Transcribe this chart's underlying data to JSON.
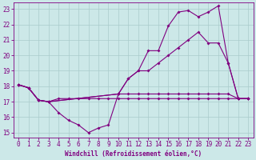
{
  "xlabel": "Windchill (Refroidissement éolien,°C)",
  "bg_color": "#cce8e8",
  "grid_color": "#aacccc",
  "line_color": "#800080",
  "xlim": [
    -0.5,
    23.5
  ],
  "ylim": [
    14.7,
    23.4
  ],
  "yticks": [
    15,
    16,
    17,
    18,
    19,
    20,
    21,
    22,
    23
  ],
  "xticks": [
    0,
    1,
    2,
    3,
    4,
    5,
    6,
    7,
    8,
    9,
    10,
    11,
    12,
    13,
    14,
    15,
    16,
    17,
    18,
    19,
    20,
    21,
    22,
    23
  ],
  "series": [
    {
      "x": [
        0,
        1,
        2,
        3,
        4,
        5,
        6,
        7,
        8,
        9,
        10,
        11,
        12,
        13,
        14,
        15,
        16,
        17,
        18,
        19,
        20,
        21,
        22,
        23
      ],
      "y": [
        18.1,
        17.9,
        17.1,
        17.0,
        16.3,
        15.8,
        15.5,
        15.0,
        15.3,
        15.5,
        17.5,
        17.5,
        17.5,
        17.5,
        17.5,
        17.5,
        17.5,
        17.5,
        17.5,
        17.5,
        17.5,
        17.5,
        17.2,
        17.2
      ]
    },
    {
      "x": [
        0,
        1,
        2,
        3,
        4,
        5,
        6,
        7,
        8,
        9,
        10,
        11,
        12,
        13,
        14,
        15,
        16,
        17,
        18,
        19,
        20,
        21,
        22,
        23
      ],
      "y": [
        18.1,
        17.9,
        17.1,
        17.0,
        17.2,
        17.2,
        17.2,
        17.2,
        17.2,
        17.2,
        17.2,
        17.2,
        17.2,
        17.2,
        17.2,
        17.2,
        17.2,
        17.2,
        17.2,
        17.2,
        17.2,
        17.2,
        17.2,
        17.2
      ]
    },
    {
      "x": [
        0,
        1,
        2,
        3,
        10,
        11,
        12,
        13,
        14,
        15,
        16,
        17,
        18,
        19,
        20,
        21,
        22,
        23
      ],
      "y": [
        18.1,
        17.9,
        17.1,
        17.0,
        17.5,
        18.5,
        19.0,
        20.3,
        20.3,
        21.9,
        22.8,
        22.9,
        22.5,
        22.8,
        23.2,
        19.5,
        17.2,
        17.2
      ]
    },
    {
      "x": [
        0,
        1,
        2,
        3,
        10,
        11,
        12,
        13,
        14,
        15,
        16,
        17,
        18,
        19,
        20,
        21,
        22,
        23
      ],
      "y": [
        18.1,
        17.9,
        17.1,
        17.0,
        17.5,
        18.5,
        19.0,
        19.0,
        19.5,
        20.0,
        20.5,
        21.0,
        21.5,
        20.8,
        20.8,
        19.5,
        17.2,
        17.2
      ]
    }
  ]
}
